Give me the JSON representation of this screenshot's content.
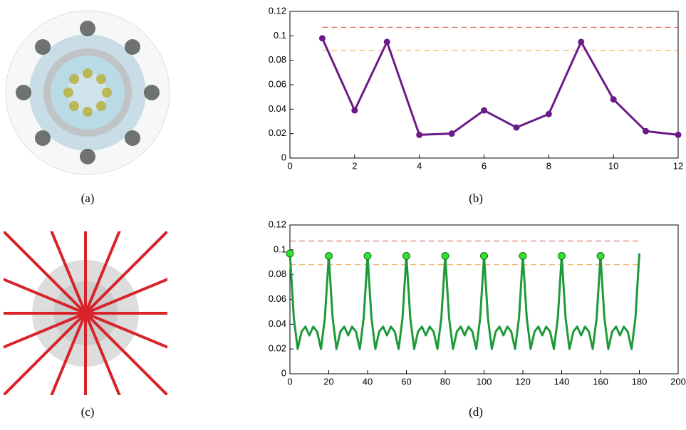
{
  "chart_data": [
    {
      "type": "line",
      "xlim": [
        0,
        12
      ],
      "xticks": [
        0,
        2,
        4,
        6,
        8,
        10,
        12
      ],
      "ylim": [
        0,
        0.12
      ],
      "yticks": [
        0,
        0.02,
        0.04,
        0.06,
        0.08,
        0.1,
        0.12
      ],
      "series": [
        {
          "color": "#6a1b8a",
          "marker": true,
          "x": [
            1,
            2,
            3,
            4,
            5,
            6,
            7,
            8,
            9,
            10,
            11,
            12
          ],
          "values": [
            0.098,
            0.039,
            0.095,
            0.019,
            0.02,
            0.039,
            0.025,
            0.036,
            0.095,
            0.048,
            0.022,
            0.019
          ]
        }
      ],
      "hlines": [
        {
          "value": 0.107,
          "color": "#d9534f",
          "x": [
            1,
            12
          ]
        },
        {
          "value": 0.088,
          "color": "#f0a040",
          "x": [
            1,
            12
          ]
        }
      ]
    },
    {
      "type": "line",
      "xlim": [
        0,
        200
      ],
      "xticks": [
        0,
        20,
        40,
        60,
        80,
        100,
        120,
        140,
        160,
        180,
        200
      ],
      "ylim": [
        0,
        0.12
      ],
      "yticks": [
        0,
        0.02,
        0.04,
        0.06,
        0.08,
        0.1,
        0.12
      ],
      "series": [
        {
          "color": "#1e9a3a",
          "marker": false,
          "x": [
            0,
            2,
            4,
            6,
            8,
            10,
            12,
            14,
            16,
            18,
            20,
            22,
            24,
            26,
            28,
            30,
            32,
            34,
            36,
            38,
            40,
            42,
            44,
            46,
            48,
            50,
            52,
            54,
            56,
            58,
            60,
            62,
            64,
            66,
            68,
            70,
            72,
            74,
            76,
            78,
            80,
            82,
            84,
            86,
            88,
            90,
            92,
            94,
            96,
            98,
            100,
            102,
            104,
            106,
            108,
            110,
            112,
            114,
            116,
            118,
            120,
            122,
            124,
            126,
            128,
            130,
            132,
            134,
            136,
            138,
            140,
            142,
            144,
            146,
            148,
            150,
            152,
            154,
            156,
            158,
            160,
            162,
            164,
            166,
            168,
            170,
            172,
            174,
            176,
            178,
            180
          ],
          "values": [
            0.097,
            0.045,
            0.02,
            0.034,
            0.038,
            0.031,
            0.038,
            0.034,
            0.02,
            0.045,
            0.095,
            0.045,
            0.02,
            0.034,
            0.038,
            0.031,
            0.038,
            0.034,
            0.02,
            0.045,
            0.095,
            0.045,
            0.02,
            0.034,
            0.038,
            0.031,
            0.038,
            0.034,
            0.02,
            0.045,
            0.095,
            0.045,
            0.02,
            0.034,
            0.038,
            0.031,
            0.038,
            0.034,
            0.02,
            0.045,
            0.095,
            0.045,
            0.02,
            0.034,
            0.038,
            0.031,
            0.038,
            0.034,
            0.02,
            0.045,
            0.095,
            0.045,
            0.02,
            0.034,
            0.038,
            0.031,
            0.038,
            0.034,
            0.02,
            0.045,
            0.095,
            0.045,
            0.02,
            0.034,
            0.038,
            0.031,
            0.038,
            0.034,
            0.02,
            0.045,
            0.095,
            0.045,
            0.02,
            0.034,
            0.038,
            0.031,
            0.038,
            0.034,
            0.02,
            0.045,
            0.095,
            0.045,
            0.02,
            0.034,
            0.038,
            0.031,
            0.038,
            0.034,
            0.02,
            0.045,
            0.097
          ]
        },
        {
          "color": "#33dd33",
          "marker": true,
          "line": false,
          "x": [
            0,
            20,
            40,
            60,
            80,
            100,
            120,
            140,
            160
          ],
          "values": [
            0.097,
            0.095,
            0.095,
            0.095,
            0.095,
            0.095,
            0.095,
            0.095,
            0.095
          ]
        }
      ],
      "hlines": [
        {
          "value": 0.107,
          "color": "#d9534f",
          "x": [
            0,
            180
          ]
        },
        {
          "value": 0.088,
          "color": "#f0a040",
          "x": [
            0,
            180
          ]
        }
      ]
    }
  ],
  "captions": [
    "(a)",
    "(b)",
    "(c)",
    "(d)"
  ]
}
